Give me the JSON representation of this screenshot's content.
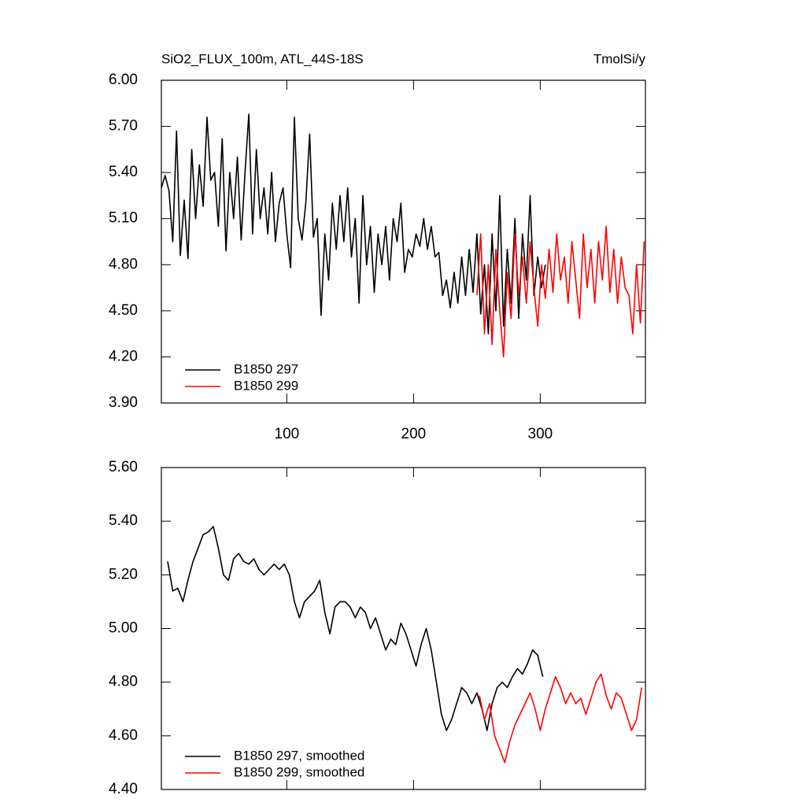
{
  "chart_data": [
    {
      "type": "line",
      "title": "SiO2_FLUX_100m, ATL_44S-18S",
      "units": "TmolSi/y",
      "xlim": [
        1,
        383
      ],
      "xticks": [
        100,
        200,
        300
      ],
      "ylim": [
        3.9,
        6.0
      ],
      "yticks": [
        {
          "value": 3.9,
          "label": "3.90"
        },
        {
          "value": 4.2,
          "label": "4.20"
        },
        {
          "value": 4.5,
          "label": "4.50"
        },
        {
          "value": 4.8,
          "label": "4.80"
        },
        {
          "value": 5.1,
          "label": "5.10"
        },
        {
          "value": 5.4,
          "label": "5.40"
        },
        {
          "value": 5.7,
          "label": "5.70"
        },
        {
          "value": 6.0,
          "label": "6.00"
        }
      ],
      "series": [
        {
          "name": "B1850 297",
          "color": "#000000",
          "x": [
            1,
            4,
            7,
            10,
            13,
            16,
            19,
            22,
            25,
            28,
            31,
            34,
            37,
            40,
            43,
            46,
            49,
            52,
            55,
            58,
            61,
            64,
            67,
            70,
            73,
            76,
            79,
            82,
            85,
            88,
            91,
            94,
            97,
            100,
            103,
            106,
            109,
            112,
            115,
            118,
            121,
            124,
            127,
            130,
            133,
            136,
            139,
            142,
            145,
            148,
            151,
            154,
            157,
            160,
            163,
            166,
            169,
            172,
            175,
            178,
            181,
            184,
            187,
            190,
            193,
            196,
            199,
            202,
            205,
            208,
            211,
            214,
            217,
            220,
            223,
            226,
            229,
            232,
            235,
            238,
            241,
            244,
            247,
            250,
            253,
            256,
            259,
            262,
            265,
            268,
            271,
            274,
            277,
            280,
            283,
            286,
            289,
            292,
            295,
            298,
            301,
            304
          ],
          "values": [
            5.3,
            5.38,
            5.28,
            4.95,
            5.67,
            4.86,
            5.22,
            4.84,
            5.55,
            5.1,
            5.45,
            5.18,
            5.76,
            5.35,
            5.4,
            5.05,
            5.62,
            4.89,
            5.4,
            5.1,
            5.5,
            4.96,
            5.4,
            5.78,
            5.0,
            5.55,
            5.1,
            5.3,
            5.0,
            5.4,
            4.95,
            5.2,
            5.3,
            5.0,
            4.78,
            5.76,
            5.1,
            4.96,
            5.2,
            5.65,
            4.98,
            5.1,
            4.47,
            5.0,
            4.7,
            5.2,
            4.9,
            5.25,
            4.95,
            5.3,
            4.85,
            5.1,
            4.55,
            5.25,
            4.8,
            5.05,
            4.62,
            5.0,
            4.8,
            5.05,
            4.7,
            5.1,
            4.95,
            5.2,
            4.75,
            4.9,
            4.85,
            5.0,
            4.92,
            5.1,
            4.9,
            5.05,
            4.85,
            4.88,
            4.6,
            4.7,
            4.52,
            4.75,
            4.55,
            4.85,
            4.6,
            4.9,
            4.62,
            5.0,
            4.48,
            4.8,
            4.35,
            5.0,
            4.5,
            5.25,
            4.4,
            4.9,
            4.55,
            5.1,
            4.45,
            5.0,
            4.7,
            5.25,
            4.6,
            4.85,
            4.65,
            4.8
          ]
        },
        {
          "name": "B1850 299",
          "color": "#ff0000",
          "x": [
            250,
            253,
            256,
            259,
            262,
            265,
            268,
            271,
            274,
            277,
            280,
            283,
            286,
            289,
            292,
            295,
            298,
            301,
            304,
            307,
            310,
            313,
            316,
            319,
            322,
            325,
            328,
            331,
            334,
            337,
            340,
            343,
            346,
            349,
            352,
            355,
            358,
            361,
            364,
            367,
            370,
            373,
            376,
            379,
            382
          ],
          "values": [
            4.6,
            5.0,
            4.35,
            4.8,
            4.28,
            4.9,
            4.5,
            4.2,
            4.75,
            4.45,
            5.0,
            4.6,
            4.85,
            4.55,
            4.95,
            4.65,
            4.4,
            4.8,
            4.58,
            4.9,
            4.62,
            5.0,
            4.7,
            4.85,
            4.55,
            4.95,
            4.7,
            4.45,
            5.0,
            4.65,
            4.9,
            4.55,
            4.95,
            4.7,
            5.05,
            4.62,
            4.9,
            4.55,
            4.85,
            4.65,
            4.6,
            4.35,
            4.8,
            4.42,
            4.95
          ]
        }
      ]
    },
    {
      "type": "line",
      "xlim": [
        1,
        383
      ],
      "xticks": [
        100,
        200,
        300
      ],
      "ylim": [
        4.4,
        5.6
      ],
      "yticks": [
        {
          "value": 4.4,
          "label": "4.40"
        },
        {
          "value": 4.6,
          "label": "4.60"
        },
        {
          "value": 4.8,
          "label": "4.80"
        },
        {
          "value": 5.0,
          "label": "5.00"
        },
        {
          "value": 5.2,
          "label": "5.20"
        },
        {
          "value": 5.4,
          "label": "5.40"
        },
        {
          "value": 5.6,
          "label": "5.60"
        }
      ],
      "series": [
        {
          "name": "B1850 297, smoothed",
          "color": "#000000",
          "x": [
            6,
            10,
            14,
            18,
            22,
            26,
            30,
            34,
            38,
            42,
            46,
            50,
            54,
            58,
            62,
            66,
            70,
            74,
            78,
            82,
            86,
            90,
            94,
            98,
            102,
            106,
            110,
            114,
            118,
            122,
            126,
            130,
            134,
            138,
            142,
            146,
            150,
            154,
            158,
            162,
            166,
            170,
            174,
            178,
            182,
            186,
            190,
            194,
            198,
            202,
            206,
            210,
            214,
            218,
            222,
            226,
            230,
            234,
            238,
            242,
            246,
            250,
            254,
            258,
            262,
            266,
            270,
            274,
            278,
            282,
            286,
            290,
            294,
            298,
            302
          ],
          "values": [
            5.25,
            5.14,
            5.15,
            5.1,
            5.18,
            5.25,
            5.3,
            5.35,
            5.36,
            5.38,
            5.3,
            5.2,
            5.18,
            5.26,
            5.28,
            5.25,
            5.24,
            5.26,
            5.22,
            5.2,
            5.22,
            5.24,
            5.22,
            5.24,
            5.2,
            5.1,
            5.04,
            5.1,
            5.12,
            5.14,
            5.18,
            5.06,
            4.98,
            5.08,
            5.1,
            5.1,
            5.08,
            5.04,
            5.08,
            5.06,
            5.0,
            5.04,
            4.98,
            4.92,
            4.96,
            4.94,
            5.02,
            4.98,
            4.92,
            4.86,
            4.94,
            5.0,
            4.92,
            4.8,
            4.68,
            4.62,
            4.66,
            4.72,
            4.78,
            4.76,
            4.72,
            4.76,
            4.7,
            4.62,
            4.72,
            4.78,
            4.8,
            4.78,
            4.82,
            4.85,
            4.83,
            4.87,
            4.92,
            4.9,
            4.82
          ]
        },
        {
          "name": "B1850 299, smoothed",
          "color": "#ff0000",
          "x": [
            252,
            256,
            260,
            264,
            268,
            272,
            276,
            280,
            284,
            288,
            292,
            296,
            300,
            304,
            308,
            312,
            316,
            320,
            324,
            328,
            332,
            336,
            340,
            344,
            348,
            352,
            356,
            360,
            364,
            368,
            372,
            376,
            380
          ],
          "values": [
            4.75,
            4.66,
            4.72,
            4.6,
            4.55,
            4.5,
            4.58,
            4.64,
            4.68,
            4.72,
            4.76,
            4.7,
            4.62,
            4.7,
            4.76,
            4.82,
            4.78,
            4.72,
            4.76,
            4.72,
            4.74,
            4.68,
            4.74,
            4.8,
            4.83,
            4.75,
            4.7,
            4.76,
            4.74,
            4.68,
            4.62,
            4.66,
            4.78
          ]
        }
      ]
    }
  ]
}
